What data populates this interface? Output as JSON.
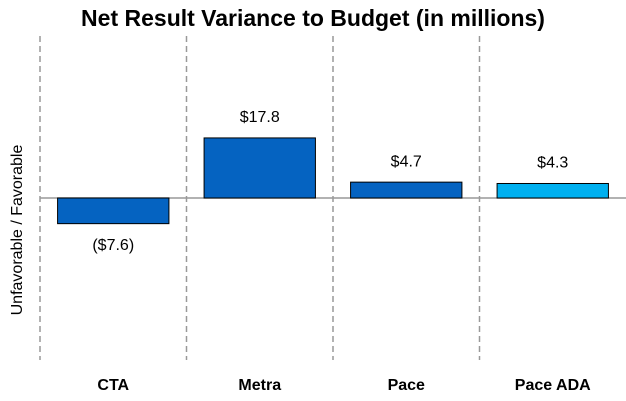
{
  "chart_data": {
    "type": "bar",
    "title": "Net Result Variance to Budget (in millions)",
    "y_label": "Unfavorable  /  Favorable",
    "categories": [
      "CTA",
      "Metra",
      "Pace",
      "Pace ADA"
    ],
    "values": [
      -7.6,
      17.8,
      4.7,
      4.3
    ],
    "value_labels": [
      "($7.6)",
      "$17.8",
      "$4.7",
      "$4.3"
    ],
    "colors": [
      "#0563c1",
      "#0563c1",
      "#0563c1",
      "#00b0f0"
    ],
    "ylim": [
      -48,
      48
    ]
  }
}
